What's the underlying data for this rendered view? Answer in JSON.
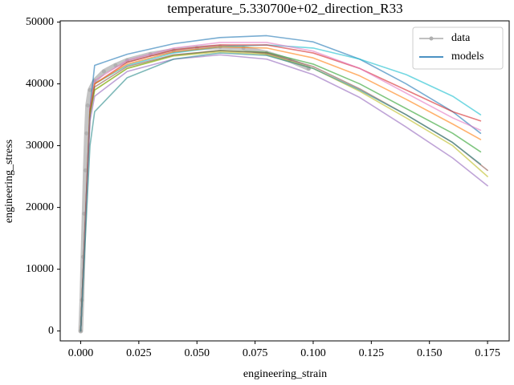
{
  "chart_data": {
    "type": "line",
    "title": "temperature_5.330700e+02_direction_R33",
    "xlabel": "engineering_strain",
    "ylabel": "engineering_stress",
    "xlim": [
      -0.0088,
      0.1843
    ],
    "ylim": [
      -1600,
      50200
    ],
    "xticks": [
      {
        "value": 0,
        "label": "0.000"
      },
      {
        "value": 0.025,
        "label": "0.025"
      },
      {
        "value": 0.05,
        "label": "0.050"
      },
      {
        "value": 0.075,
        "label": "0.075"
      },
      {
        "value": 0.1,
        "label": "0.100"
      },
      {
        "value": 0.125,
        "label": "0.125"
      },
      {
        "value": 0.15,
        "label": "0.150"
      },
      {
        "value": 0.175,
        "label": "0.175"
      }
    ],
    "yticks": [
      0,
      10000,
      20000,
      30000,
      40000,
      50000
    ],
    "legend": "upper right",
    "series": [
      {
        "name": "data",
        "color": "#b0b0b0",
        "x": [
          0,
          0.0005,
          0.001,
          0.0015,
          0.002,
          0.0025,
          0.003,
          0.004,
          0.006,
          0.01,
          0.015,
          0.02,
          0.03,
          0.04,
          0.05,
          0.06,
          0.07,
          0.08,
          0.09,
          0.098
        ],
        "values": [
          0,
          5000,
          12000,
          19000,
          26000,
          32000,
          36500,
          39000,
          40500,
          42000,
          43000,
          43800,
          44800,
          45400,
          45800,
          46000,
          45800,
          45000,
          43800,
          42500
        ]
      },
      {
        "name": "models",
        "lines": [
          {
            "color": "#1f77b4",
            "x": [
              0,
              0.004,
              0.006,
              0.02,
              0.04,
              0.06,
              0.08,
              0.1,
              0.12,
              0.14,
              0.16,
              0.172
            ],
            "values": [
              0,
              36000,
              43000,
              44800,
              46500,
              47500,
              47800,
              46800,
              44000,
              40000,
              35500,
              32000
            ]
          },
          {
            "color": "#17becf",
            "x": [
              0,
              0.004,
              0.006,
              0.02,
              0.04,
              0.06,
              0.08,
              0.1,
              0.12,
              0.14,
              0.16,
              0.172
            ],
            "values": [
              0,
              35000,
              40000,
              43000,
              45000,
              46000,
              46300,
              45800,
              44000,
              41500,
              38000,
              35000
            ]
          },
          {
            "color": "#d62728",
            "x": [
              0,
              0.004,
              0.006,
              0.02,
              0.04,
              0.06,
              0.08,
              0.1,
              0.12,
              0.14,
              0.16,
              0.172
            ],
            "values": [
              0,
              36000,
              40000,
              43500,
              45500,
              46300,
              46300,
              45000,
              42500,
              39000,
              35500,
              34000
            ]
          },
          {
            "color": "#e377c2",
            "x": [
              0,
              0.004,
              0.006,
              0.02,
              0.04,
              0.06,
              0.08,
              0.1,
              0.12,
              0.14,
              0.16,
              0.172
            ],
            "values": [
              0,
              36000,
              40500,
              43800,
              45800,
              46700,
              46700,
              45300,
              42500,
              38500,
              34500,
              32500
            ]
          },
          {
            "color": "#ff7f0e",
            "x": [
              0,
              0.004,
              0.006,
              0.02,
              0.04,
              0.06,
              0.08,
              0.1,
              0.12,
              0.14,
              0.16,
              0.172
            ],
            "values": [
              0,
              35500,
              40000,
              43200,
              45200,
              46000,
              45800,
              44200,
              41300,
              37500,
              33500,
              31000
            ]
          },
          {
            "color": "#2ca02c",
            "x": [
              0,
              0.004,
              0.006,
              0.02,
              0.04,
              0.06,
              0.08,
              0.1,
              0.12,
              0.14,
              0.16,
              0.172
            ],
            "values": [
              0,
              35000,
              39000,
              42500,
              44600,
              45400,
              45100,
              43200,
              40000,
              36000,
              32000,
              29000
            ]
          },
          {
            "color": "#bcbd22",
            "x": [
              0,
              0.004,
              0.006,
              0.02,
              0.04,
              0.06,
              0.08,
              0.1,
              0.12,
              0.14,
              0.16,
              0.175
            ],
            "values": [
              0,
              35000,
              39000,
              42500,
              44500,
              45200,
              44800,
              42500,
              38800,
              34500,
              30000,
              25000
            ]
          },
          {
            "color": "#8c564b",
            "x": [
              0,
              0.004,
              0.006,
              0.02,
              0.04,
              0.06,
              0.08,
              0.1,
              0.12,
              0.14,
              0.16,
              0.175
            ],
            "values": [
              0,
              35500,
              39500,
              42800,
              44700,
              45400,
              45000,
              42800,
              39200,
              35000,
              30500,
              26000
            ]
          },
          {
            "color": "#9467bd",
            "x": [
              0,
              0.004,
              0.006,
              0.02,
              0.04,
              0.06,
              0.08,
              0.1,
              0.12,
              0.14,
              0.16,
              0.175
            ],
            "values": [
              0,
              34000,
              38000,
              42000,
              44000,
              44700,
              44000,
              41500,
              37800,
              33000,
              28000,
              23500
            ]
          },
          {
            "color": "#2a8a8a",
            "x": [
              0,
              0.004,
              0.006,
              0.02,
              0.04,
              0.06,
              0.08,
              0.1,
              0.12,
              0.14,
              0.16,
              0.172
            ],
            "values": [
              0,
              30000,
              35500,
              41000,
              44000,
              45000,
              44600,
              42500,
              39000,
              35000,
              30500,
              27000
            ]
          }
        ]
      }
    ]
  }
}
